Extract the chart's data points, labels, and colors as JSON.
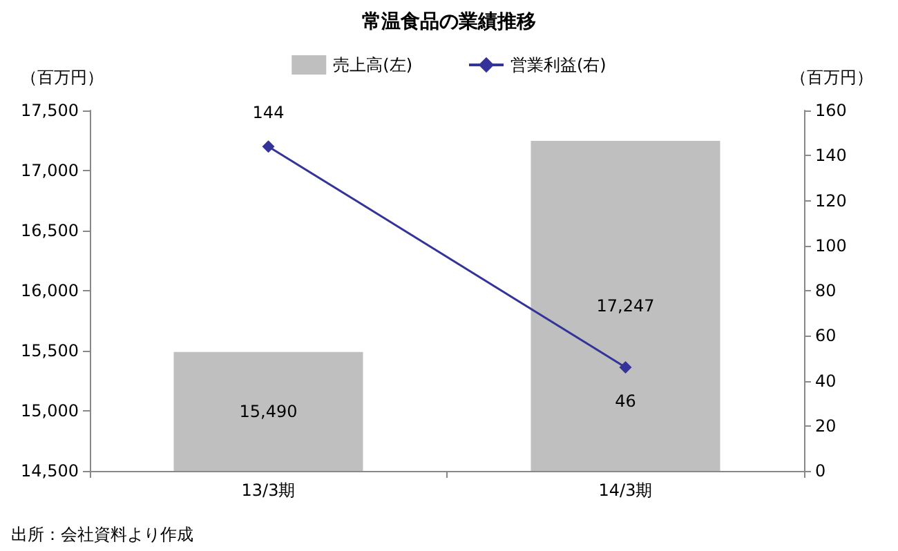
{
  "chart_data": {
    "type": "bar",
    "title": "常温食品の業績推移",
    "ylabel": "（百万円）",
    "y2label": "（百万円）",
    "categories": [
      "13/3期",
      "14/3期"
    ],
    "series": [
      {
        "name": "売上高(左)",
        "color": "#bfbfbf",
        "values": [
          15490,
          17247
        ],
        "value_labels": [
          "15,490",
          "17,247"
        ]
      },
      {
        "name": "営業利益(右)",
        "type": "line",
        "axis": "y2",
        "color": "#333399",
        "marker": "diamond",
        "values": [
          144,
          46
        ]
      }
    ],
    "ylim": [
      14500,
      17500
    ],
    "yticks": [
      {
        "value": 14500,
        "label": "14,500"
      },
      {
        "value": 15000,
        "label": "15,000"
      },
      {
        "value": 15500,
        "label": "15,500"
      },
      {
        "value": 16000,
        "label": "16,000"
      },
      {
        "value": 16500,
        "label": "16,500"
      },
      {
        "value": 17000,
        "label": "17,000"
      },
      {
        "value": 17500,
        "label": "17,500"
      }
    ],
    "y2lim": [
      0,
      160
    ],
    "y2ticks": [
      0,
      20,
      40,
      60,
      80,
      100,
      120,
      140,
      160
    ],
    "data_labels": true,
    "grid": false,
    "legend": "top",
    "annotations": [
      "出所：会社資料より作成"
    ]
  }
}
